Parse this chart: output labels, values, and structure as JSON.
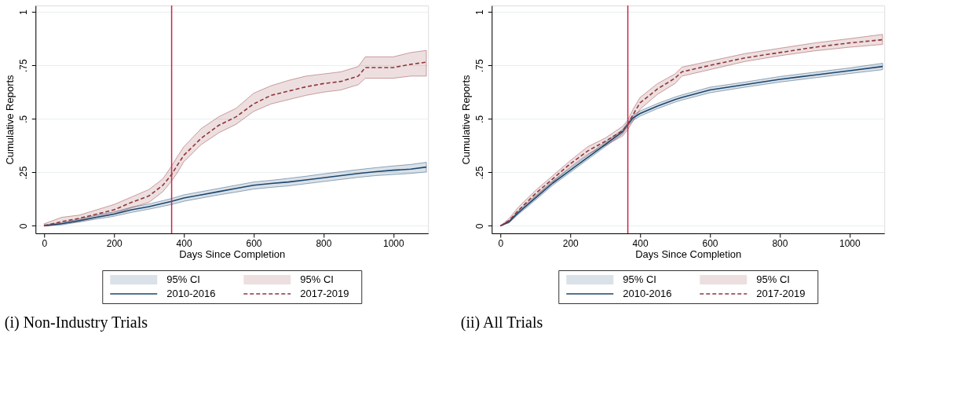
{
  "chart_data": [
    {
      "type": "line",
      "title": "(i) Non-Industry Trials",
      "xlabel": "Days Since Completion",
      "ylabel": "Cumulative Reports",
      "xlim": [
        -25,
        1100
      ],
      "xticks": [
        0,
        200,
        400,
        600,
        800,
        1000
      ],
      "ylim": [
        -0.035,
        1.03
      ],
      "yticks": [
        0,
        {
          "value": 0.25,
          "label": ".25"
        },
        {
          "value": 0.5,
          "label": ".5"
        },
        {
          "value": 0.75,
          "label": ".75"
        },
        1
      ],
      "grid": "y",
      "legend": "bottom",
      "annotations": [
        "95% CI",
        "95% CI"
      ],
      "ref_lines": [
        {
          "axis": "x",
          "value": 365,
          "color": "#c8274a"
        }
      ],
      "series": [
        {
          "name": "2010-2016",
          "line_style": "solid",
          "color": "#1a476f",
          "x": [
            0,
            50,
            100,
            150,
            200,
            250,
            300,
            365,
            400,
            450,
            500,
            550,
            600,
            650,
            700,
            750,
            800,
            850,
            900,
            950,
            1000,
            1050,
            1095
          ],
          "values": [
            0,
            0.01,
            0.025,
            0.04,
            0.055,
            0.075,
            0.09,
            0.115,
            0.13,
            0.145,
            0.16,
            0.175,
            0.19,
            0.198,
            0.205,
            0.215,
            0.225,
            0.235,
            0.245,
            0.253,
            0.26,
            0.265,
            0.275
          ],
          "lower": [
            0,
            0.005,
            0.018,
            0.032,
            0.045,
            0.063,
            0.078,
            0.1,
            0.115,
            0.13,
            0.145,
            0.158,
            0.172,
            0.18,
            0.187,
            0.197,
            0.207,
            0.217,
            0.227,
            0.235,
            0.24,
            0.245,
            0.252
          ],
          "upper": [
            0.005,
            0.015,
            0.032,
            0.05,
            0.065,
            0.087,
            0.102,
            0.128,
            0.145,
            0.16,
            0.175,
            0.19,
            0.205,
            0.213,
            0.222,
            0.232,
            0.243,
            0.253,
            0.263,
            0.272,
            0.28,
            0.287,
            0.297
          ]
        },
        {
          "name": "2017-2019",
          "line_style": "dashed",
          "color": "#90353b",
          "x": [
            0,
            50,
            100,
            150,
            200,
            250,
            300,
            340,
            365,
            380,
            400,
            450,
            500,
            550,
            600,
            650,
            700,
            750,
            800,
            850,
            900,
            920,
            1000,
            1050,
            1095
          ],
          "values": [
            0,
            0.02,
            0.035,
            0.055,
            0.075,
            0.11,
            0.14,
            0.19,
            0.24,
            0.28,
            0.33,
            0.41,
            0.47,
            0.51,
            0.57,
            0.61,
            0.63,
            0.65,
            0.665,
            0.675,
            0.7,
            0.74,
            0.74,
            0.755,
            0.765
          ],
          "lower": [
            0,
            0.01,
            0.02,
            0.04,
            0.055,
            0.085,
            0.11,
            0.16,
            0.21,
            0.245,
            0.3,
            0.38,
            0.435,
            0.475,
            0.535,
            0.57,
            0.59,
            0.61,
            0.625,
            0.635,
            0.66,
            0.69,
            0.69,
            0.7,
            0.7
          ],
          "upper": [
            0.01,
            0.04,
            0.05,
            0.075,
            0.1,
            0.135,
            0.17,
            0.22,
            0.28,
            0.32,
            0.37,
            0.455,
            0.51,
            0.55,
            0.62,
            0.655,
            0.68,
            0.7,
            0.71,
            0.72,
            0.745,
            0.79,
            0.79,
            0.81,
            0.82
          ]
        }
      ]
    },
    {
      "type": "line",
      "title": "(ii) All Trials",
      "xlabel": "Days Since Completion",
      "ylabel": "Cumulative Reports",
      "xlim": [
        -25,
        1100
      ],
      "xticks": [
        0,
        200,
        400,
        600,
        800,
        1000
      ],
      "ylim": [
        -0.035,
        1.03
      ],
      "yticks": [
        0,
        {
          "value": 0.25,
          "label": ".25"
        },
        {
          "value": 0.5,
          "label": ".5"
        },
        {
          "value": 0.75,
          "label": ".75"
        },
        1
      ],
      "grid": "y",
      "legend": "bottom",
      "annotations": [
        "95% CI",
        "95% CI"
      ],
      "ref_lines": [
        {
          "axis": "x",
          "value": 365,
          "color": "#c8274a"
        }
      ],
      "series": [
        {
          "name": "2010-2016",
          "line_style": "solid",
          "color": "#1a476f",
          "x": [
            0,
            25,
            50,
            100,
            150,
            200,
            250,
            300,
            350,
            365,
            380,
            400,
            450,
            500,
            520,
            600,
            700,
            800,
            900,
            1000,
            1095
          ],
          "values": [
            0,
            0.02,
            0.06,
            0.13,
            0.2,
            0.26,
            0.32,
            0.38,
            0.44,
            0.475,
            0.505,
            0.525,
            0.56,
            0.59,
            0.6,
            0.635,
            0.66,
            0.685,
            0.705,
            0.725,
            0.745
          ],
          "lower": [
            0,
            0.015,
            0.052,
            0.12,
            0.19,
            0.25,
            0.31,
            0.37,
            0.43,
            0.465,
            0.493,
            0.513,
            0.548,
            0.578,
            0.588,
            0.622,
            0.648,
            0.672,
            0.692,
            0.712,
            0.73
          ],
          "upper": [
            0,
            0.025,
            0.068,
            0.14,
            0.21,
            0.27,
            0.33,
            0.39,
            0.45,
            0.485,
            0.517,
            0.537,
            0.572,
            0.602,
            0.612,
            0.648,
            0.672,
            0.698,
            0.718,
            0.738,
            0.76
          ]
        },
        {
          "name": "2017-2019",
          "line_style": "dashed",
          "color": "#90353b",
          "x": [
            0,
            25,
            50,
            100,
            150,
            200,
            250,
            300,
            350,
            365,
            380,
            400,
            450,
            500,
            520,
            600,
            700,
            800,
            900,
            1000,
            1095
          ],
          "values": [
            0,
            0.025,
            0.07,
            0.15,
            0.22,
            0.29,
            0.35,
            0.395,
            0.445,
            0.475,
            0.52,
            0.575,
            0.64,
            0.69,
            0.72,
            0.75,
            0.785,
            0.81,
            0.835,
            0.855,
            0.87
          ],
          "lower": [
            0,
            0.015,
            0.058,
            0.135,
            0.205,
            0.275,
            0.335,
            0.375,
            0.42,
            0.45,
            0.49,
            0.545,
            0.615,
            0.665,
            0.7,
            0.73,
            0.768,
            0.795,
            0.818,
            0.835,
            0.848
          ],
          "upper": [
            0,
            0.035,
            0.085,
            0.165,
            0.235,
            0.305,
            0.37,
            0.41,
            0.465,
            0.495,
            0.545,
            0.6,
            0.665,
            0.71,
            0.742,
            0.77,
            0.805,
            0.83,
            0.855,
            0.875,
            0.895
          ]
        }
      ]
    }
  ]
}
